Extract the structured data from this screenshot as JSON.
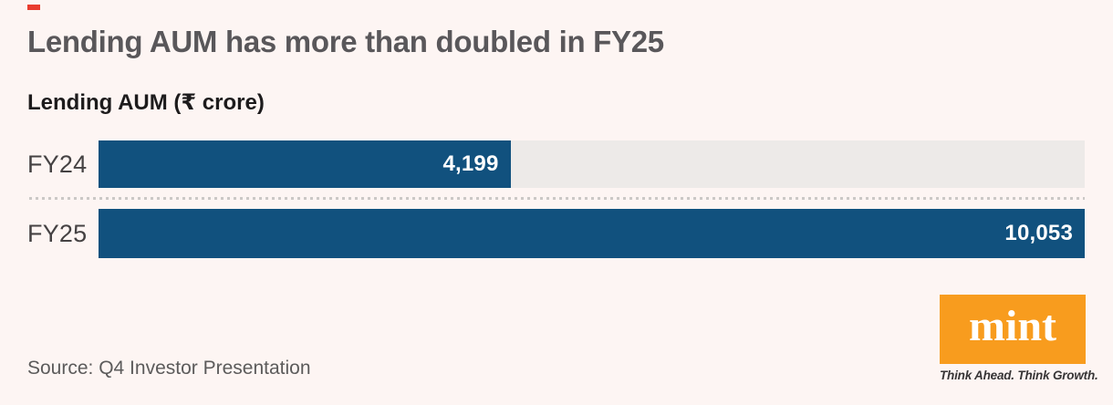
{
  "colors": {
    "background": "#FDF5F3",
    "bar_blue": "#11517E",
    "track_gray": "#EDEAE8",
    "accent_red_dash": "#E93C2F",
    "mint_orange": "#F89C1E",
    "title_gray": "#59575A",
    "value_text": "#FFFFFF"
  },
  "header": {
    "title": "Lending AUM has more than doubled in FY25",
    "subtitle": "Lending AUM (₹ crore)"
  },
  "chart_data": {
    "type": "bar",
    "orientation": "horizontal",
    "title": "Lending AUM has more than doubled in FY25",
    "unit_label": "Lending AUM (₹ crore)",
    "categories": [
      "FY24",
      "FY25"
    ],
    "values": [
      4199,
      10053
    ],
    "value_labels": [
      "4,199",
      "10,053"
    ],
    "xlim": [
      0,
      10053
    ],
    "xlabel": "",
    "ylabel": "",
    "grid": false,
    "legend": false,
    "bar_color": "#11517E",
    "track_color": "#EDEAE8"
  },
  "footer": {
    "source": "Source: Q4 Investor Presentation"
  },
  "logo": {
    "text": "mint",
    "tagline": "Think Ahead. Think Growth."
  }
}
